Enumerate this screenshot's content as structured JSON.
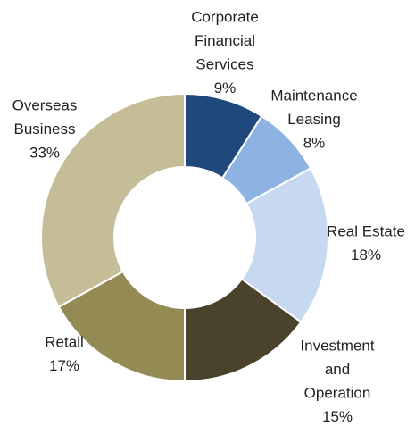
{
  "chart_data": {
    "type": "donut",
    "categories": [
      [
        "Corporate",
        "Financial",
        "Services"
      ],
      [
        "Maintenance",
        "Leasing"
      ],
      [
        "Real Estate"
      ],
      [
        "Investment",
        "and",
        "Operation"
      ],
      [
        "Retail"
      ],
      [
        "Overseas",
        "Business"
      ]
    ],
    "values": [
      9,
      8,
      18,
      15,
      17,
      33
    ],
    "value_labels": [
      "9%",
      "8%",
      "18%",
      "15%",
      "17%",
      "33%"
    ],
    "colors": [
      "#1f497d",
      "#8db3e2",
      "#c6d9f1",
      "#4a422a",
      "#948a54",
      "#c4bd97"
    ]
  }
}
